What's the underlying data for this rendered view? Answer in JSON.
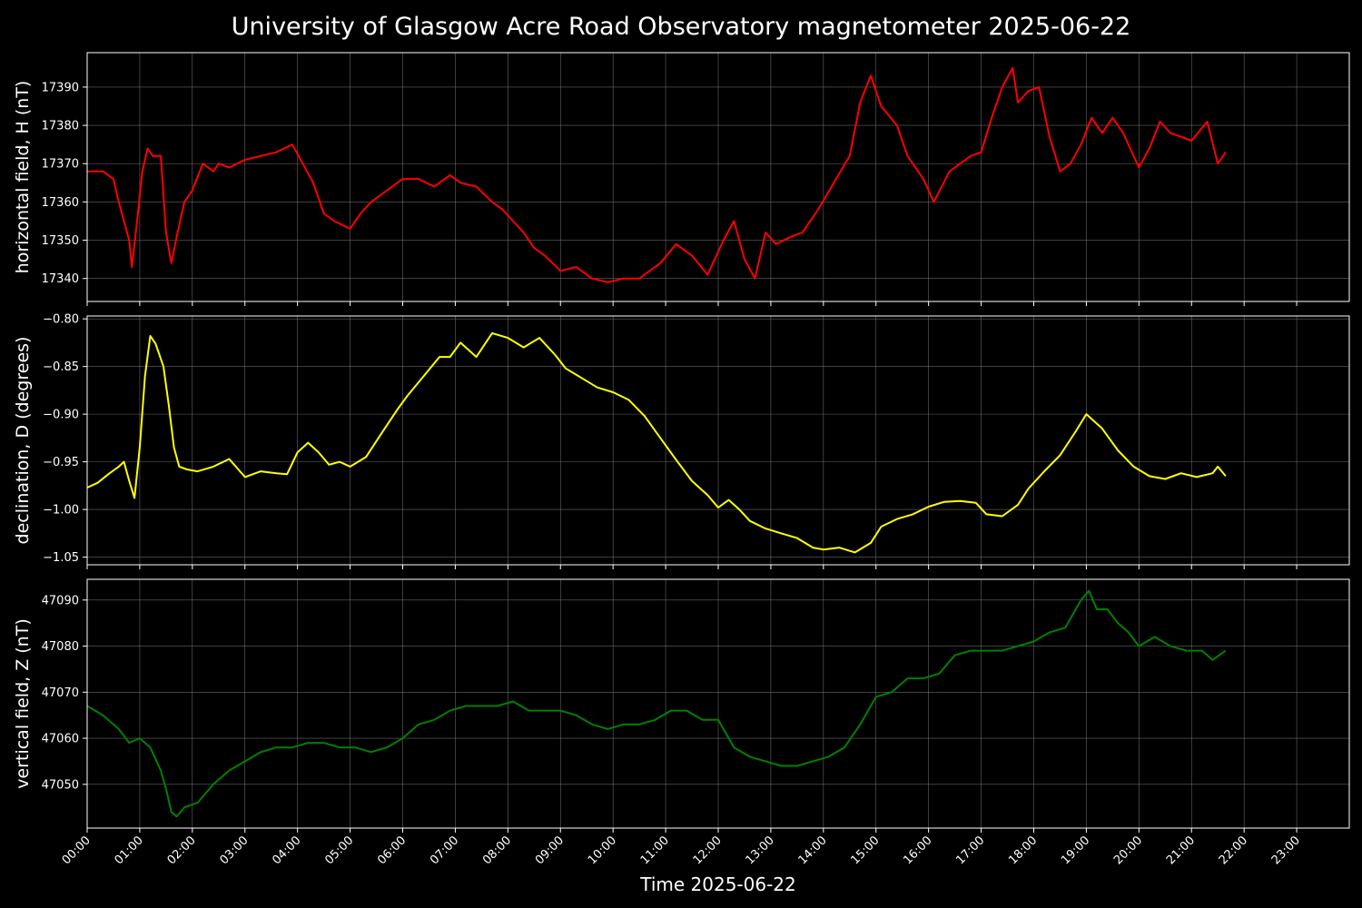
{
  "figure": {
    "title": "University of Glasgow Acre Road Observatory magnetometer 2025-06-22",
    "xlabel": "Time 2025-06-22",
    "background": "#000000",
    "grid_color": "#808080"
  },
  "chart_data": [
    {
      "type": "line",
      "ylabel": "horizontal field, H (nT)",
      "color": "#ff0000",
      "xlim": [
        0,
        24
      ],
      "ylim": [
        17334,
        17399
      ],
      "yticks": [
        17340,
        17350,
        17360,
        17370,
        17380,
        17390
      ],
      "ytick_labels": [
        "17340",
        "17350",
        "17360",
        "17370",
        "17380",
        "17390"
      ],
      "grid": true,
      "series": [
        {
          "x": [
            0,
            0.3,
            0.5,
            0.6,
            0.7,
            0.8,
            0.85,
            0.95,
            1.05,
            1.15,
            1.25,
            1.4,
            1.5,
            1.6,
            1.72,
            1.85,
            2.0,
            2.2,
            2.4,
            2.5,
            2.7,
            3.0,
            3.3,
            3.6,
            3.9,
            4.1,
            4.3,
            4.5,
            4.7,
            5.0,
            5.2,
            5.4,
            5.7,
            6.0,
            6.3,
            6.6,
            6.9,
            7.1,
            7.4,
            7.7,
            7.9,
            8.1,
            8.3,
            8.5,
            8.7,
            9.0,
            9.3,
            9.6,
            9.9,
            10.2,
            10.5,
            10.9,
            11.2,
            11.5,
            11.8,
            12.1,
            12.3,
            12.5,
            12.7,
            12.9,
            13.1,
            13.4,
            13.6,
            13.9,
            14.2,
            14.5,
            14.7,
            14.9,
            15.1,
            15.4,
            15.6,
            15.9,
            16.1,
            16.4,
            16.8,
            17.0,
            17.2,
            17.4,
            17.6,
            17.7,
            17.9,
            18.1,
            18.3,
            18.5,
            18.7,
            18.9,
            19.1,
            19.3,
            19.5,
            19.7,
            20.0,
            20.2,
            20.4,
            20.6,
            20.8,
            21.0,
            21.3,
            21.5,
            21.65
          ],
          "y": [
            17368,
            17368,
            17366,
            17360,
            17355,
            17350,
            17343,
            17355,
            17368,
            17374,
            17372,
            17372,
            17352,
            17344,
            17352,
            17360,
            17363,
            17370,
            17368,
            17370,
            17369,
            17371,
            17372,
            17373,
            17375,
            17370,
            17365,
            17357,
            17355,
            17353,
            17357,
            17360,
            17363,
            17366,
            17366,
            17364,
            17367,
            17365,
            17364,
            17360,
            17358,
            17355,
            17352,
            17348,
            17346,
            17342,
            17343,
            17340,
            17339,
            17340,
            17340,
            17344,
            17349,
            17346,
            17341,
            17350,
            17355,
            17345,
            17340,
            17352,
            17349,
            17351,
            17352,
            17358,
            17365,
            17372,
            17386,
            17393,
            17385,
            17380,
            17372,
            17366,
            17360,
            17368,
            17372,
            17373,
            17382,
            17390,
            17395,
            17386,
            17389,
            17390,
            17377,
            17368,
            17370,
            17375,
            17382,
            17378,
            17382,
            17378,
            17369,
            17374,
            17381,
            17378,
            17377,
            17376,
            17381,
            17370,
            17373
          ]
        }
      ]
    },
    {
      "type": "line",
      "ylabel": "declination, D (degrees)",
      "color": "#ffff00",
      "xlim": [
        0,
        24
      ],
      "ylim": [
        -1.058,
        -0.797
      ],
      "yticks": [
        -1.05,
        -1.0,
        -0.95,
        -0.9,
        -0.85,
        -0.8
      ],
      "ytick_labels": [
        "−1.05",
        "−1.00",
        "−0.95",
        "−0.90",
        "−0.85",
        "−0.80"
      ],
      "grid": true,
      "series": [
        {
          "x": [
            0,
            0.2,
            0.4,
            0.6,
            0.7,
            0.8,
            0.9,
            1.0,
            1.1,
            1.2,
            1.3,
            1.45,
            1.55,
            1.65,
            1.75,
            1.9,
            2.1,
            2.4,
            2.7,
            3.0,
            3.3,
            3.6,
            3.8,
            4.0,
            4.2,
            4.4,
            4.6,
            4.8,
            5.0,
            5.3,
            5.6,
            5.9,
            6.1,
            6.4,
            6.7,
            6.9,
            7.1,
            7.4,
            7.7,
            8.0,
            8.3,
            8.6,
            8.9,
            9.1,
            9.4,
            9.7,
            10.0,
            10.3,
            10.6,
            10.9,
            11.2,
            11.5,
            11.8,
            12.0,
            12.2,
            12.4,
            12.6,
            12.9,
            13.2,
            13.5,
            13.8,
            14.0,
            14.3,
            14.6,
            14.9,
            15.1,
            15.4,
            15.7,
            16.0,
            16.3,
            16.6,
            16.9,
            17.1,
            17.4,
            17.7,
            17.9,
            18.2,
            18.5,
            18.8,
            19.0,
            19.3,
            19.6,
            19.9,
            20.2,
            20.5,
            20.8,
            21.1,
            21.4,
            21.5,
            21.65
          ],
          "y": [
            -0.977,
            -0.972,
            -0.963,
            -0.955,
            -0.95,
            -0.97,
            -0.988,
            -0.935,
            -0.86,
            -0.818,
            -0.826,
            -0.85,
            -0.89,
            -0.935,
            -0.955,
            -0.958,
            -0.96,
            -0.955,
            -0.947,
            -0.966,
            -0.96,
            -0.962,
            -0.963,
            -0.94,
            -0.93,
            -0.94,
            -0.953,
            -0.95,
            -0.955,
            -0.945,
            -0.92,
            -0.895,
            -0.88,
            -0.86,
            -0.84,
            -0.84,
            -0.825,
            -0.84,
            -0.815,
            -0.82,
            -0.83,
            -0.82,
            -0.838,
            -0.852,
            -0.862,
            -0.872,
            -0.877,
            -0.885,
            -0.902,
            -0.925,
            -0.948,
            -0.97,
            -0.985,
            -0.998,
            -0.99,
            -1.0,
            -1.012,
            -1.02,
            -1.025,
            -1.03,
            -1.04,
            -1.042,
            -1.04,
            -1.045,
            -1.035,
            -1.018,
            -1.01,
            -1.005,
            -0.997,
            -0.992,
            -0.991,
            -0.993,
            -1.005,
            -1.007,
            -0.995,
            -0.978,
            -0.96,
            -0.943,
            -0.918,
            -0.9,
            -0.915,
            -0.938,
            -0.955,
            -0.965,
            -0.968,
            -0.962,
            -0.966,
            -0.962,
            -0.955,
            -0.965
          ]
        }
      ]
    },
    {
      "type": "line",
      "ylabel": "vertical field, Z (nT)",
      "color": "#008000",
      "xlim": [
        0,
        24
      ],
      "ylim": [
        47040.5,
        47094.5
      ],
      "yticks": [
        47050,
        47060,
        47070,
        47080,
        47090
      ],
      "ytick_labels": [
        "47050",
        "47060",
        "47070",
        "47080",
        "47090"
      ],
      "grid": true,
      "series": [
        {
          "x": [
            0,
            0.3,
            0.6,
            0.8,
            1.0,
            1.2,
            1.4,
            1.5,
            1.6,
            1.7,
            1.85,
            2.1,
            2.4,
            2.7,
            3.0,
            3.3,
            3.6,
            3.9,
            4.2,
            4.5,
            4.8,
            5.1,
            5.4,
            5.7,
            6.0,
            6.3,
            6.6,
            6.9,
            7.2,
            7.5,
            7.8,
            8.1,
            8.4,
            8.7,
            9.0,
            9.3,
            9.6,
            9.9,
            10.2,
            10.5,
            10.8,
            11.1,
            11.4,
            11.7,
            12.0,
            12.3,
            12.6,
            12.9,
            13.2,
            13.5,
            13.8,
            14.1,
            14.4,
            14.7,
            15.0,
            15.3,
            15.6,
            15.9,
            16.2,
            16.5,
            16.8,
            17.1,
            17.4,
            17.7,
            18.0,
            18.3,
            18.6,
            18.9,
            19.05,
            19.2,
            19.4,
            19.6,
            19.8,
            20.0,
            20.3,
            20.6,
            20.9,
            21.2,
            21.4,
            21.65
          ],
          "y": [
            47067,
            47065,
            47062,
            47059,
            47060,
            47058,
            47053,
            47049,
            47044,
            47043,
            47045,
            47046,
            47050,
            47053,
            47055,
            47057,
            47058,
            47058,
            47059,
            47059,
            47058,
            47058,
            47057,
            47058,
            47060,
            47063,
            47064,
            47066,
            47067,
            47067,
            47067,
            47068,
            47066,
            47066,
            47066,
            47065,
            47063,
            47062,
            47063,
            47063,
            47064,
            47066,
            47066,
            47064,
            47064,
            47058,
            47056,
            47055,
            47054,
            47054,
            47055,
            47056,
            47058,
            47063,
            47069,
            47070,
            47073,
            47073,
            47074,
            47078,
            47079,
            47079,
            47079,
            47080,
            47081,
            47083,
            47084,
            47090,
            47092,
            47088,
            47088,
            47085,
            47083,
            47080,
            47082,
            47080,
            47079,
            47079,
            47077,
            47079
          ]
        }
      ]
    }
  ],
  "xaxis": {
    "tick_labels": [
      "00:00",
      "01:00",
      "02:00",
      "03:00",
      "04:00",
      "05:00",
      "06:00",
      "07:00",
      "08:00",
      "09:00",
      "10:00",
      "11:00",
      "12:00",
      "13:00",
      "14:00",
      "15:00",
      "16:00",
      "17:00",
      "18:00",
      "19:00",
      "20:00",
      "21:00",
      "22:00",
      "23:00"
    ]
  }
}
